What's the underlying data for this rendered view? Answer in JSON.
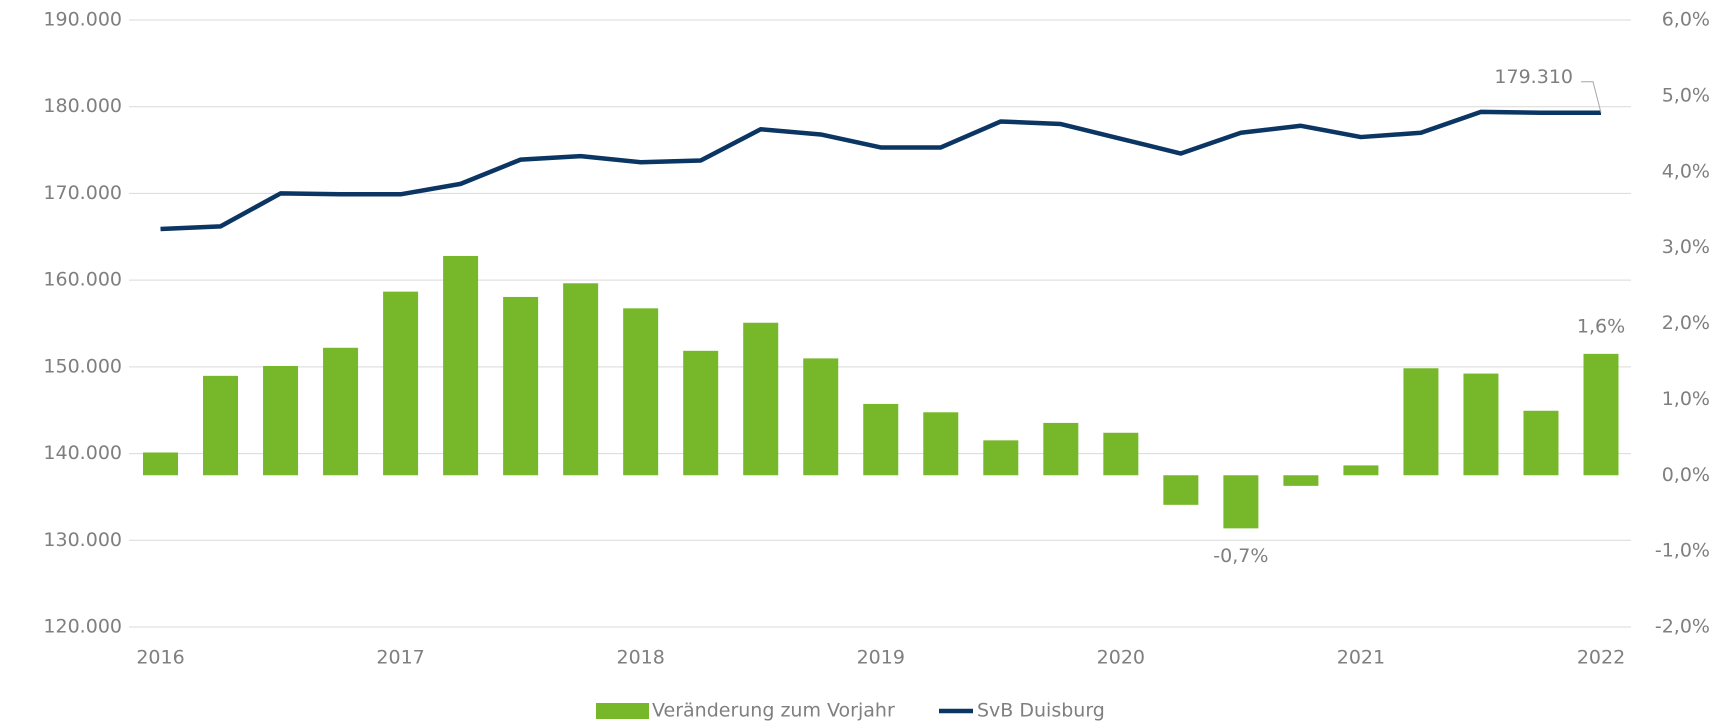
{
  "chart_data": {
    "type": "bar_line",
    "categories": [
      "2016",
      null,
      null,
      null,
      "2017",
      null,
      null,
      null,
      "2018",
      null,
      null,
      null,
      "2019",
      null,
      null,
      null,
      "2020",
      null,
      null,
      null,
      "2021",
      null,
      null,
      null,
      "2022"
    ],
    "series": [
      {
        "name": "Veränderung zum Vorjahr",
        "color": "#77b82a",
        "axis": "y2",
        "kind": "bar",
        "values": [
          0.3,
          1.31,
          1.44,
          1.68,
          2.42,
          2.89,
          2.35,
          2.53,
          2.2,
          1.64,
          2.01,
          1.54,
          0.94,
          0.83,
          0.46,
          0.69,
          0.56,
          -0.39,
          -0.7,
          -0.14,
          0.13,
          1.41,
          1.34,
          0.85,
          1.6
        ],
        "value_labels": [
          null,
          null,
          null,
          null,
          null,
          null,
          null,
          null,
          null,
          null,
          null,
          null,
          null,
          null,
          null,
          null,
          null,
          null,
          "-0,7%",
          null,
          null,
          null,
          null,
          null,
          "1,6%"
        ]
      },
      {
        "name": "SvB Duisburg",
        "color": "#0b3563",
        "axis": "y",
        "kind": "line",
        "values": [
          165900,
          166200,
          170000,
          169900,
          169900,
          171100,
          173900,
          174300,
          173600,
          173800,
          177400,
          176800,
          175300,
          175300,
          178300,
          178000,
          176300,
          174600,
          177000,
          177800,
          176500,
          177000,
          179400,
          179300,
          179310
        ],
        "value_labels": [
          null,
          null,
          null,
          null,
          null,
          null,
          null,
          null,
          null,
          null,
          null,
          null,
          null,
          null,
          null,
          null,
          null,
          null,
          null,
          null,
          null,
          null,
          null,
          null,
          "179.310"
        ]
      }
    ],
    "ylim": [
      120000,
      190000
    ],
    "yticks": [
      {
        "value": 120000,
        "label": "120.000"
      },
      {
        "value": 130000,
        "label": "130.000"
      },
      {
        "value": 140000,
        "label": "140.000"
      },
      {
        "value": 150000,
        "label": "150.000"
      },
      {
        "value": 160000,
        "label": "160.000"
      },
      {
        "value": 170000,
        "label": "170.000"
      },
      {
        "value": 180000,
        "label": "180.000"
      },
      {
        "value": 190000,
        "label": "190.000"
      }
    ],
    "y2lim": [
      -2,
      6
    ],
    "y2ticks": [
      {
        "value": -2,
        "label": "-2,0%"
      },
      {
        "value": -1,
        "label": "-1,0%"
      },
      {
        "value": 0,
        "label": "0,0%"
      },
      {
        "value": 1,
        "label": "1,0%"
      },
      {
        "value": 2,
        "label": "2,0%"
      },
      {
        "value": 3,
        "label": "3,0%"
      },
      {
        "value": 4,
        "label": "4,0%"
      },
      {
        "value": 5,
        "label": "5,0%"
      },
      {
        "value": 6,
        "label": "6,0%"
      }
    ],
    "grid": true,
    "legend": "bottom"
  }
}
